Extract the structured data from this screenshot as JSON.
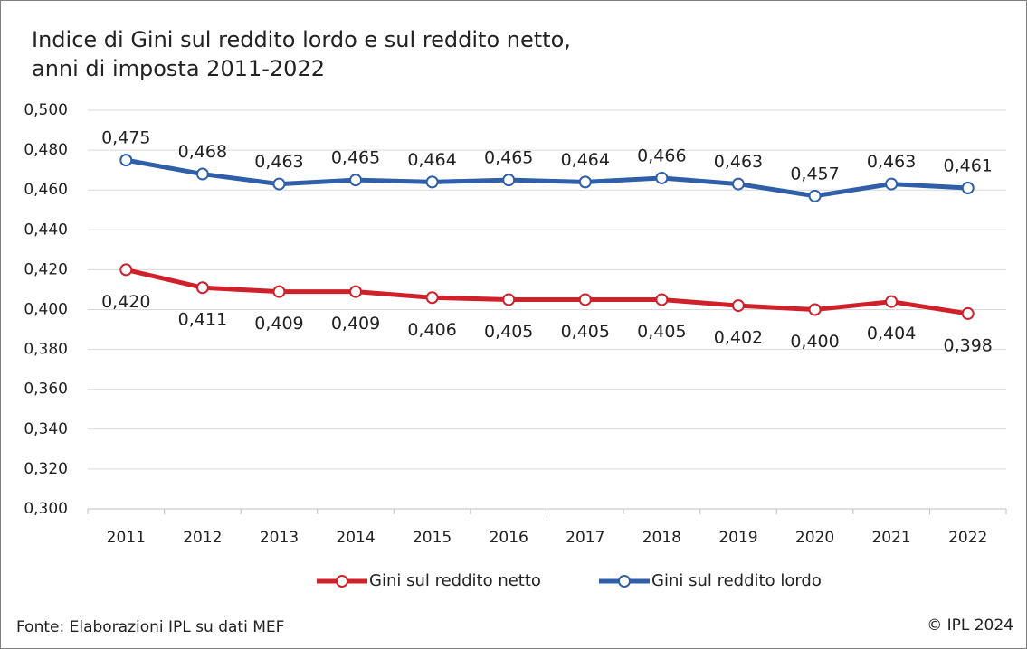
{
  "chart_data": {
    "type": "line",
    "title": [
      "Indice di Gini sul reddito lordo e sul reddito netto,",
      "anni di imposta 2011-2022"
    ],
    "categories": [
      "2011",
      "2012",
      "2013",
      "2014",
      "2015",
      "2016",
      "2017",
      "2018",
      "2019",
      "2020",
      "2021",
      "2022"
    ],
    "series": [
      {
        "name": "Gini sul reddito netto",
        "color": "#d0202a",
        "values": [
          0.42,
          0.411,
          0.409,
          0.409,
          0.406,
          0.405,
          0.405,
          0.405,
          0.402,
          0.4,
          0.404,
          0.398
        ],
        "value_labels": [
          "0,420",
          "0,411",
          "0,409",
          "0,409",
          "0,406",
          "0,405",
          "0,405",
          "0,405",
          "0,402",
          "0,400",
          "0,404",
          "0,398"
        ]
      },
      {
        "name": "Gini sul reddito lordo",
        "color": "#2e5fa8",
        "values": [
          0.475,
          0.468,
          0.463,
          0.465,
          0.464,
          0.465,
          0.464,
          0.466,
          0.463,
          0.457,
          0.463,
          0.461
        ],
        "value_labels": [
          "0,475",
          "0,468",
          "0,463",
          "0,465",
          "0,464",
          "0,465",
          "0,464",
          "0,466",
          "0,463",
          "0,457",
          "0,463",
          "0,461"
        ]
      }
    ],
    "ylim": [
      0.3,
      0.5
    ],
    "yticks": [
      {
        "value": 0.3,
        "label": "0,300"
      },
      {
        "value": 0.32,
        "label": "0,320"
      },
      {
        "value": 0.34,
        "label": "0,340"
      },
      {
        "value": 0.36,
        "label": "0,360"
      },
      {
        "value": 0.38,
        "label": "0,380"
      },
      {
        "value": 0.4,
        "label": "0,400"
      },
      {
        "value": 0.42,
        "label": "0,420"
      },
      {
        "value": 0.44,
        "label": "0,440"
      },
      {
        "value": 0.46,
        "label": "0,460"
      },
      {
        "value": 0.48,
        "label": "0,480"
      },
      {
        "value": 0.5,
        "label": "0,500"
      }
    ],
    "grid": true,
    "legend": "bottom",
    "source": "Fonte: Elaborazioni IPL su dati MEF",
    "copyright": "© IPL 2024"
  }
}
